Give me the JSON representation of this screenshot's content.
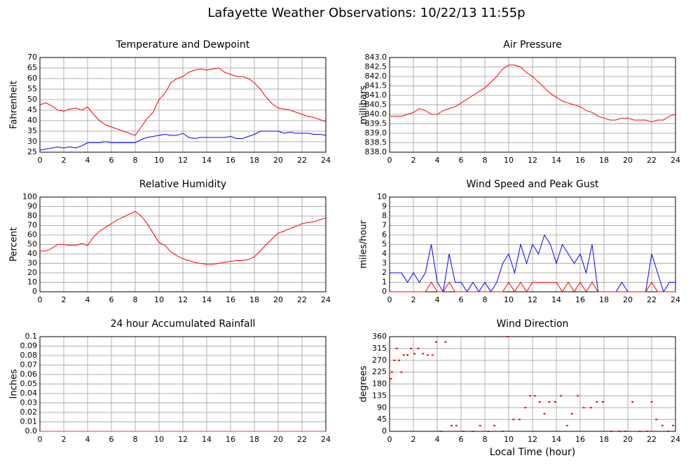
{
  "title": "Lafayette Weather Observations: 10/22/13 11:55p",
  "chart_data": [
    {
      "type": "line",
      "title": "Temperature and Dewpoint",
      "y_label": "Fahrenheit",
      "x": [
        0,
        0.5,
        1,
        1.5,
        2,
        2.5,
        3,
        3.5,
        4,
        4.5,
        5,
        5.5,
        6,
        6.5,
        7,
        7.5,
        8,
        8.5,
        9,
        9.5,
        10,
        10.5,
        11,
        11.5,
        12,
        12.5,
        13,
        13.5,
        14,
        14.5,
        15,
        15.5,
        16,
        16.5,
        17,
        17.5,
        18,
        18.5,
        19,
        19.5,
        20,
        20.5,
        21,
        21.5,
        22,
        22.5,
        23,
        23.5,
        24
      ],
      "series": [
        {
          "color": "#ff0000",
          "values": [
            47.5,
            48.5,
            47,
            45,
            44.5,
            45.5,
            46,
            45,
            46.5,
            43,
            40,
            38,
            37,
            36,
            35,
            34,
            33,
            37,
            41,
            44,
            50,
            53,
            58,
            60,
            61,
            63,
            64,
            64.5,
            64,
            64.5,
            65,
            63,
            62,
            61,
            61,
            60,
            58,
            55,
            51,
            48,
            46,
            45.5,
            45,
            44,
            43,
            42,
            41.5,
            40.5,
            39.5
          ]
        },
        {
          "color": "#0000ff",
          "values": [
            26,
            26.5,
            27,
            27.5,
            27,
            27.5,
            27,
            28,
            29.5,
            29.5,
            29.5,
            30,
            29.5,
            29.5,
            29.5,
            29.5,
            29.5,
            31,
            32,
            32.5,
            33,
            33.5,
            33,
            33,
            34,
            32,
            31.5,
            32,
            32,
            32,
            32,
            32,
            32.5,
            31.5,
            31.5,
            32.5,
            33.5,
            35,
            35,
            35,
            35,
            34,
            34.5,
            34,
            34,
            34,
            33.5,
            33.5,
            33
          ]
        }
      ],
      "xlim": [
        0,
        24
      ],
      "xticks": [
        0,
        2,
        4,
        6,
        8,
        10,
        12,
        14,
        16,
        18,
        20,
        22,
        24
      ],
      "ylim": [
        25,
        70
      ],
      "yticks": [
        25,
        30,
        35,
        40,
        45,
        50,
        55,
        60,
        65,
        70
      ],
      "grid": true
    },
    {
      "type": "line",
      "title": "Air Pressure",
      "y_label": "millibars",
      "x": [
        0,
        0.5,
        1,
        1.5,
        2,
        2.5,
        3,
        3.5,
        4,
        4.5,
        5,
        5.5,
        6,
        6.5,
        7,
        7.5,
        8,
        8.5,
        9,
        9.5,
        10,
        10.5,
        11,
        11.5,
        12,
        12.5,
        13,
        13.5,
        14,
        14.5,
        15,
        15.5,
        16,
        16.5,
        17,
        17.5,
        18,
        18.5,
        19,
        19.5,
        20,
        20.5,
        21,
        21.5,
        22,
        22.5,
        23,
        23.5,
        24
      ],
      "series": [
        {
          "color": "#ff0000",
          "values": [
            839.9,
            839.9,
            839.9,
            840,
            840.1,
            840.3,
            840.2,
            840,
            840,
            840.2,
            840.3,
            840.4,
            840.6,
            840.8,
            841,
            841.2,
            841.4,
            841.7,
            842,
            842.4,
            842.6,
            842.6,
            842.5,
            842.2,
            842,
            841.7,
            841.4,
            841.1,
            840.9,
            840.7,
            840.6,
            840.5,
            840.4,
            840.2,
            840.1,
            839.9,
            839.8,
            839.7,
            839.7,
            839.8,
            839.8,
            839.7,
            839.7,
            839.7,
            839.6,
            839.7,
            839.7,
            839.9,
            840
          ]
        }
      ],
      "xlim": [
        0,
        24
      ],
      "xticks": [
        0,
        2,
        4,
        6,
        8,
        10,
        12,
        14,
        16,
        18,
        20,
        22,
        24
      ],
      "ylim": [
        838,
        843
      ],
      "yticks": [
        {
          "value": 838,
          "label": "838.0"
        },
        {
          "value": 838.5,
          "label": "838.5"
        },
        {
          "value": 839,
          "label": "839.0"
        },
        {
          "value": 839.5,
          "label": "839.5"
        },
        {
          "value": 840,
          "label": "840.0"
        },
        {
          "value": 840.5,
          "label": "840.5"
        },
        {
          "value": 841,
          "label": "841.0"
        },
        {
          "value": 841.5,
          "label": "841.5"
        },
        {
          "value": 842,
          "label": "842.0"
        },
        {
          "value": 842.5,
          "label": "842.5"
        },
        {
          "value": 843,
          "label": "843.0"
        }
      ],
      "grid": true
    },
    {
      "type": "line",
      "title": "Relative Humidity",
      "y_label": "Percent",
      "x": [
        0,
        0.5,
        1,
        1.5,
        2,
        2.5,
        3,
        3.5,
        4,
        4.5,
        5,
        5.5,
        6,
        6.5,
        7,
        7.5,
        8,
        8.5,
        9,
        9.5,
        10,
        10.5,
        11,
        11.5,
        12,
        12.5,
        13,
        13.5,
        14,
        14.5,
        15,
        15.5,
        16,
        16.5,
        17,
        17.5,
        18,
        18.5,
        19,
        19.5,
        20,
        20.5,
        21,
        21.5,
        22,
        22.5,
        23,
        23.5,
        24
      ],
      "series": [
        {
          "color": "#ff0000",
          "values": [
            43,
            43,
            46,
            50,
            50,
            49,
            49,
            51,
            49,
            58,
            64,
            68,
            72,
            76,
            79,
            82,
            85,
            80,
            72,
            62,
            52,
            49,
            42,
            38,
            35,
            33,
            31,
            30,
            29,
            29,
            30,
            31,
            32,
            33,
            33,
            34,
            37,
            43,
            50,
            56,
            62,
            64,
            67,
            69,
            72,
            73,
            74,
            76,
            78
          ]
        }
      ],
      "xlim": [
        0,
        24
      ],
      "xticks": [
        0,
        2,
        4,
        6,
        8,
        10,
        12,
        14,
        16,
        18,
        20,
        22,
        24
      ],
      "ylim": [
        0,
        100
      ],
      "yticks": [
        0,
        10,
        20,
        30,
        40,
        50,
        60,
        70,
        80,
        90,
        100
      ],
      "grid": true
    },
    {
      "type": "line",
      "title": "Wind Speed and Peak Gust",
      "y_label": "miles/hour",
      "x": [
        0,
        0.5,
        1,
        1.5,
        2,
        2.5,
        3,
        3.5,
        4,
        4.5,
        5,
        5.5,
        6,
        6.5,
        7,
        7.5,
        8,
        8.5,
        9,
        9.5,
        10,
        10.5,
        11,
        11.5,
        12,
        12.5,
        13,
        13.5,
        14,
        14.5,
        15,
        15.5,
        16,
        16.5,
        17,
        17.5,
        18,
        18.5,
        19,
        19.5,
        20,
        20.5,
        21,
        21.5,
        22,
        22.5,
        23,
        23.5,
        24
      ],
      "series": [
        {
          "color": "#0000ff",
          "values": [
            2,
            2,
            2,
            1,
            2,
            1,
            2,
            5,
            1,
            0,
            4,
            1,
            1,
            0,
            1,
            0,
            1,
            0,
            1,
            3,
            4,
            2,
            5,
            3,
            5,
            4,
            6,
            5,
            3,
            5,
            4,
            3,
            4,
            2,
            5,
            0,
            0,
            0,
            0,
            1,
            0,
            0,
            0,
            0,
            4,
            2,
            0,
            1,
            1
          ]
        },
        {
          "color": "#ff0000",
          "values": [
            0,
            0,
            0,
            0,
            0,
            0,
            0,
            1,
            0,
            0,
            1,
            0,
            0,
            0,
            0,
            0,
            0,
            0,
            0,
            0,
            1,
            0,
            1,
            0,
            1,
            1,
            1,
            1,
            1,
            0,
            1,
            0,
            1,
            0,
            1,
            0,
            0,
            0,
            0,
            0,
            0,
            0,
            0,
            0,
            1,
            0,
            0,
            0,
            0
          ]
        }
      ],
      "xlim": [
        0,
        24
      ],
      "xticks": [
        0,
        2,
        4,
        6,
        8,
        10,
        12,
        14,
        16,
        18,
        20,
        22,
        24
      ],
      "ylim": [
        0,
        10
      ],
      "yticks": [
        0,
        1,
        2,
        3,
        4,
        5,
        6,
        7,
        8,
        9,
        10
      ],
      "grid": true
    },
    {
      "type": "line",
      "title": "24 hour Accumulated Rainfall",
      "y_label": "Inches",
      "x": [
        0,
        24
      ],
      "series": [
        {
          "color": "#ff3030",
          "values": [
            0,
            0
          ]
        }
      ],
      "xlim": [
        0,
        24
      ],
      "xticks": [
        0,
        2,
        4,
        6,
        8,
        10,
        12,
        14,
        16,
        18,
        20,
        22,
        24
      ],
      "ylim": [
        0,
        0.1
      ],
      "yticks": [
        {
          "value": 0,
          "label": "0.0"
        },
        0.01,
        0.02,
        0.03,
        0.04,
        0.05,
        0.06,
        0.07,
        0.08,
        0.09,
        0.1
      ],
      "grid": true
    },
    {
      "type": "scatter",
      "title": "Wind Direction",
      "y_label": "degrees",
      "x_label": "Local Time (hour)",
      "x": [
        0.1,
        0.2,
        0.4,
        0.6,
        0.8,
        1,
        1.2,
        1.5,
        1.8,
        2.1,
        2.4,
        2.8,
        3.2,
        3.6,
        3.9,
        4.3,
        4.7,
        5.2,
        5.6,
        6.2,
        7,
        7.6,
        8.3,
        8.8,
        9.5,
        9.9,
        10.4,
        10.9,
        11.4,
        11.8,
        12.2,
        12.6,
        13,
        13.4,
        13.9,
        14.4,
        14.9,
        15.3,
        15.8,
        16.3,
        16.9,
        17.4,
        17.9,
        18.6,
        19.3,
        19.8,
        20.4,
        21,
        21.6,
        22,
        22.4,
        22.9,
        23.4,
        23.8
      ],
      "series": [
        {
          "color": "#ff0000",
          "values": [
            200,
            225,
            270,
            315,
            270,
            225,
            290,
            290,
            315,
            295,
            315,
            295,
            290,
            290,
            340,
            0,
            340,
            22,
            22,
            0,
            0,
            22,
            0,
            22,
            0,
            360,
            45,
            45,
            90,
            135,
            135,
            112,
            67,
            112,
            112,
            135,
            22,
            67,
            135,
            90,
            90,
            112,
            112,
            0,
            0,
            0,
            112,
            0,
            0,
            112,
            45,
            22,
            0,
            22
          ]
        }
      ],
      "xlim": [
        0,
        24
      ],
      "xticks": [
        0,
        2,
        4,
        6,
        8,
        10,
        12,
        14,
        16,
        18,
        20,
        22,
        24
      ],
      "ylim": [
        0,
        360
      ],
      "yticks": [
        0,
        45,
        90,
        135,
        180,
        225,
        270,
        315,
        360
      ],
      "grid": true
    }
  ]
}
